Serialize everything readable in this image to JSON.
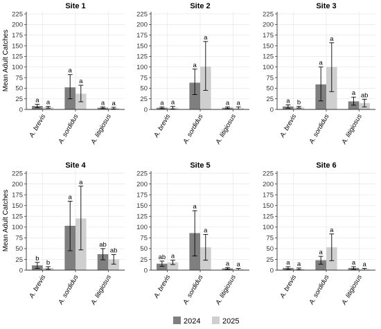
{
  "chart_data": {
    "type": "bar",
    "ylabel": "Mean Adult Catches",
    "yticks": [
      0,
      25,
      50,
      75,
      100,
      125,
      150,
      175,
      200,
      225
    ],
    "ylim": [
      0,
      230
    ],
    "grid": true,
    "legend": {
      "placement": "bottom",
      "entries": [
        {
          "name": "2024",
          "color": "#7f7f7f"
        },
        {
          "name": "2025",
          "color": "#cfcfcf"
        }
      ]
    },
    "categories": [
      "A. brevis",
      "A. sordidus",
      "A. litigiosus"
    ],
    "panels": [
      {
        "title": "Site 1",
        "series": [
          {
            "name": "2024",
            "values": [
              8,
              52,
              4
            ],
            "err_low": [
              4,
              25,
              2
            ],
            "err_high": [
              12,
              82,
              6
            ],
            "sig": [
              "a",
              "a",
              "a"
            ]
          },
          {
            "name": "2025",
            "values": [
              5,
              37,
              3
            ],
            "err_low": [
              3,
              18,
              1
            ],
            "err_high": [
              7,
              57,
              5
            ],
            "sig": [
              "a",
              "a",
              "a"
            ]
          }
        ]
      },
      {
        "title": "Site 2",
        "series": [
          {
            "name": "2024",
            "values": [
              4,
              63,
              4
            ],
            "err_low": [
              2,
              35,
              2
            ],
            "err_high": [
              6,
              95,
              6
            ],
            "sig": [
              "a",
              "a",
              "a"
            ]
          },
          {
            "name": "2025",
            "values": [
              4,
              101,
              3
            ],
            "err_low": [
              1,
              45,
              0
            ],
            "err_high": [
              7,
              160,
              6
            ],
            "sig": [
              "a",
              "a",
              "a"
            ]
          }
        ]
      },
      {
        "title": "Site 3",
        "series": [
          {
            "name": "2024",
            "values": [
              7,
              59,
              19
            ],
            "err_low": [
              3,
              20,
              10
            ],
            "err_high": [
              11,
              100,
              29
            ],
            "sig": [
              "a",
              "a",
              "a"
            ]
          },
          {
            "name": "2025",
            "values": [
              5,
              100,
              15
            ],
            "err_low": [
              3,
              42,
              6
            ],
            "err_high": [
              7,
              157,
              24
            ],
            "sig": [
              "b",
              "a",
              "ab"
            ]
          }
        ]
      },
      {
        "title": "Site 4",
        "series": [
          {
            "name": "2024",
            "values": [
              11,
              103,
              37
            ],
            "err_low": [
              4,
              45,
              24
            ],
            "err_high": [
              18,
              160,
              50
            ],
            "sig": [
              "b",
              "a",
              "ab"
            ]
          },
          {
            "name": "2025",
            "values": [
              5,
              120,
              25
            ],
            "err_low": [
              2,
              47,
              14
            ],
            "err_high": [
              8,
              195,
              36
            ],
            "sig": [
              "b",
              "a",
              "ab"
            ]
          }
        ]
      },
      {
        "title": "Site 5",
        "series": [
          {
            "name": "2024",
            "values": [
              15,
              86,
              4
            ],
            "err_low": [
              9,
              33,
              2
            ],
            "err_high": [
              21,
              138,
              6
            ],
            "sig": [
              "ab",
              "a",
              "a"
            ]
          },
          {
            "name": "2025",
            "values": [
              18,
              53,
              2
            ],
            "err_low": [
              13,
              23,
              0
            ],
            "err_high": [
              23,
              83,
              4
            ],
            "sig": [
              "a",
              "a",
              "a"
            ]
          }
        ]
      },
      {
        "title": "Site 6",
        "series": [
          {
            "name": "2024",
            "values": [
              5,
              23,
              5
            ],
            "err_low": [
              2,
              14,
              2
            ],
            "err_high": [
              8,
              32,
              8
            ],
            "sig": [
              "a",
              "a",
              "a"
            ]
          },
          {
            "name": "2025",
            "values": [
              3,
              53,
              2
            ],
            "err_low": [
              1,
              22,
              0
            ],
            "err_high": [
              5,
              84,
              4
            ],
            "sig": [
              "a",
              "a",
              "a"
            ]
          }
        ]
      }
    ]
  }
}
